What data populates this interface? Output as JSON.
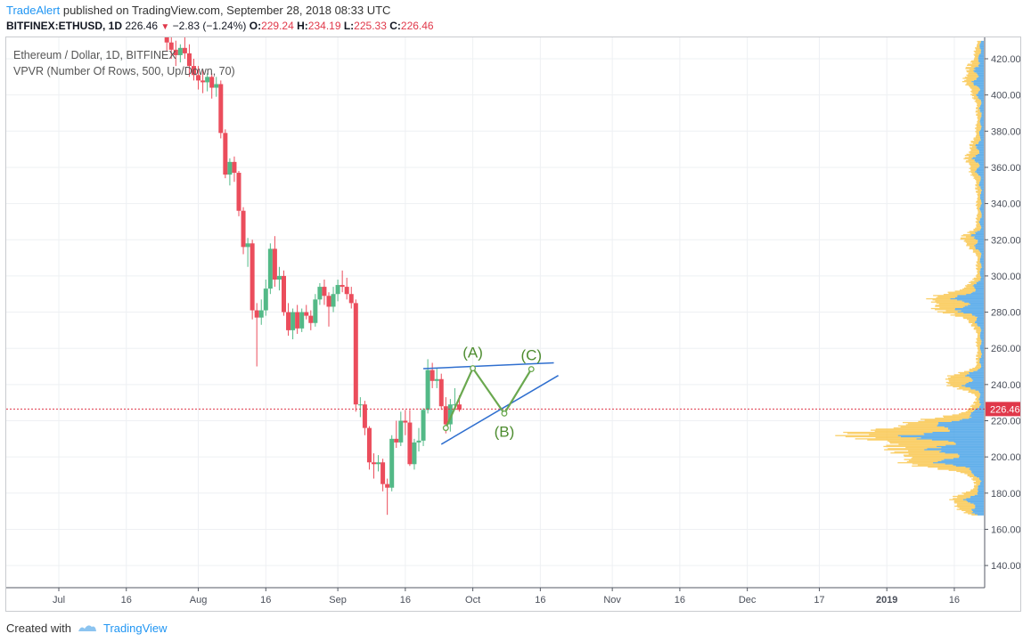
{
  "header": {
    "author": "TradeAlert",
    "published_text": "published on TradingView.com, September 28, 2018 08:33 UTC"
  },
  "symbol_bar": {
    "symbol": "BITFINEX:ETHUSD, 1D",
    "last": "226.46",
    "change": "−2.83 (−1.24%)",
    "o_label": "O:",
    "o_value": "229.24",
    "h_label": "H:",
    "h_value": "234.19",
    "l_label": "L:",
    "l_value": "225.33",
    "c_label": "C:",
    "c_value": "226.46"
  },
  "legend": {
    "title": "Ethereum / Dollar, 1D, BITFINEX",
    "indicator": "VPVR (Number Of Rows, 500, Up/Down, 70)"
  },
  "footer": {
    "created_with": "Created with",
    "tradingview": "TradingView"
  },
  "colors": {
    "up": "#53b987",
    "down": "#eb4d5c",
    "vp_up": "#4aa3e8",
    "vp_down": "#f9c74f",
    "trendline": "#2f6fcf",
    "wave": "#6aa84f",
    "price_line": "#e0384a"
  },
  "chart_data": {
    "type": "candlestick",
    "title": "Ethereum / Dollar, 1D, BITFINEX",
    "symbol": "BITFINEX:ETHUSD",
    "timeframe": "1D",
    "ylim": [
      130,
      430
    ],
    "y_ticks": [
      "140.00",
      "160.00",
      "180.00",
      "200.00",
      "220.00",
      "240.00",
      "260.00",
      "280.00",
      "300.00",
      "320.00",
      "340.00",
      "360.00",
      "380.00",
      "400.00",
      "420.00"
    ],
    "x_ticks": [
      "Jul",
      "16",
      "Aug",
      "16",
      "Sep",
      "16",
      "Oct",
      "16",
      "Nov",
      "16",
      "Dec",
      "17",
      "2019",
      "16"
    ],
    "last_price": "226.46",
    "candles": [
      {
        "date": "2018-07-25",
        "o": 433,
        "h": 440,
        "l": 424,
        "c": 429
      },
      {
        "date": "2018-07-26",
        "o": 429,
        "h": 433,
        "l": 420,
        "c": 425
      },
      {
        "date": "2018-07-27",
        "o": 425,
        "h": 430,
        "l": 416,
        "c": 422
      },
      {
        "date": "2018-07-28",
        "o": 422,
        "h": 428,
        "l": 418,
        "c": 426
      },
      {
        "date": "2018-07-29",
        "o": 426,
        "h": 432,
        "l": 420,
        "c": 423
      },
      {
        "date": "2018-07-30",
        "o": 423,
        "h": 428,
        "l": 410,
        "c": 416
      },
      {
        "date": "2018-07-31",
        "o": 416,
        "h": 420,
        "l": 408,
        "c": 411
      },
      {
        "date": "2018-08-01",
        "o": 411,
        "h": 416,
        "l": 403,
        "c": 408
      },
      {
        "date": "2018-08-02",
        "o": 408,
        "h": 414,
        "l": 401,
        "c": 407
      },
      {
        "date": "2018-08-03",
        "o": 407,
        "h": 412,
        "l": 402,
        "c": 410
      },
      {
        "date": "2018-08-04",
        "o": 410,
        "h": 412,
        "l": 398,
        "c": 404
      },
      {
        "date": "2018-08-05",
        "o": 404,
        "h": 410,
        "l": 399,
        "c": 406
      },
      {
        "date": "2018-08-06",
        "o": 406,
        "h": 408,
        "l": 376,
        "c": 379
      },
      {
        "date": "2018-08-07",
        "o": 379,
        "h": 381,
        "l": 354,
        "c": 356
      },
      {
        "date": "2018-08-08",
        "o": 356,
        "h": 365,
        "l": 350,
        "c": 363
      },
      {
        "date": "2018-08-09",
        "o": 363,
        "h": 366,
        "l": 352,
        "c": 357
      },
      {
        "date": "2018-08-10",
        "o": 357,
        "h": 358,
        "l": 333,
        "c": 336
      },
      {
        "date": "2018-08-11",
        "o": 336,
        "h": 338,
        "l": 312,
        "c": 316
      },
      {
        "date": "2018-08-12",
        "o": 316,
        "h": 321,
        "l": 305,
        "c": 318
      },
      {
        "date": "2018-08-13",
        "o": 318,
        "h": 320,
        "l": 276,
        "c": 281
      },
      {
        "date": "2018-08-14",
        "o": 281,
        "h": 285,
        "l": 250,
        "c": 277
      },
      {
        "date": "2018-08-15",
        "o": 277,
        "h": 287,
        "l": 273,
        "c": 281
      },
      {
        "date": "2018-08-16",
        "o": 281,
        "h": 298,
        "l": 278,
        "c": 293
      },
      {
        "date": "2018-08-17",
        "o": 293,
        "h": 318,
        "l": 290,
        "c": 315
      },
      {
        "date": "2018-08-18",
        "o": 315,
        "h": 322,
        "l": 294,
        "c": 298
      },
      {
        "date": "2018-08-19",
        "o": 298,
        "h": 305,
        "l": 292,
        "c": 300
      },
      {
        "date": "2018-08-20",
        "o": 300,
        "h": 303,
        "l": 278,
        "c": 280
      },
      {
        "date": "2018-08-21",
        "o": 280,
        "h": 285,
        "l": 267,
        "c": 270
      },
      {
        "date": "2018-08-22",
        "o": 270,
        "h": 282,
        "l": 265,
        "c": 280
      },
      {
        "date": "2018-08-23",
        "o": 280,
        "h": 284,
        "l": 268,
        "c": 271
      },
      {
        "date": "2018-08-24",
        "o": 271,
        "h": 282,
        "l": 269,
        "c": 280
      },
      {
        "date": "2018-08-25",
        "o": 280,
        "h": 284,
        "l": 276,
        "c": 278
      },
      {
        "date": "2018-08-26",
        "o": 278,
        "h": 281,
        "l": 270,
        "c": 274
      },
      {
        "date": "2018-08-27",
        "o": 274,
        "h": 290,
        "l": 272,
        "c": 287
      },
      {
        "date": "2018-08-28",
        "o": 287,
        "h": 296,
        "l": 284,
        "c": 294
      },
      {
        "date": "2018-08-29",
        "o": 294,
        "h": 298,
        "l": 284,
        "c": 289
      },
      {
        "date": "2018-08-30",
        "o": 289,
        "h": 291,
        "l": 272,
        "c": 283
      },
      {
        "date": "2018-08-31",
        "o": 283,
        "h": 294,
        "l": 280,
        "c": 290
      },
      {
        "date": "2018-09-01",
        "o": 290,
        "h": 298,
        "l": 286,
        "c": 295
      },
      {
        "date": "2018-09-02",
        "o": 295,
        "h": 303,
        "l": 291,
        "c": 294
      },
      {
        "date": "2018-09-03",
        "o": 294,
        "h": 299,
        "l": 287,
        "c": 290
      },
      {
        "date": "2018-09-04",
        "o": 290,
        "h": 294,
        "l": 282,
        "c": 285
      },
      {
        "date": "2018-09-05",
        "o": 285,
        "h": 287,
        "l": 225,
        "c": 229
      },
      {
        "date": "2018-09-06",
        "o": 229,
        "h": 233,
        "l": 222,
        "c": 229
      },
      {
        "date": "2018-09-07",
        "o": 229,
        "h": 231,
        "l": 212,
        "c": 216
      },
      {
        "date": "2018-09-08",
        "o": 216,
        "h": 217,
        "l": 193,
        "c": 197
      },
      {
        "date": "2018-09-09",
        "o": 197,
        "h": 202,
        "l": 188,
        "c": 196
      },
      {
        "date": "2018-09-10",
        "o": 196,
        "h": 201,
        "l": 192,
        "c": 197
      },
      {
        "date": "2018-09-11",
        "o": 197,
        "h": 199,
        "l": 181,
        "c": 185
      },
      {
        "date": "2018-09-12",
        "o": 185,
        "h": 188,
        "l": 168,
        "c": 183
      },
      {
        "date": "2018-09-13",
        "o": 183,
        "h": 212,
        "l": 181,
        "c": 210
      },
      {
        "date": "2018-09-14",
        "o": 210,
        "h": 220,
        "l": 205,
        "c": 208
      },
      {
        "date": "2018-09-15",
        "o": 208,
        "h": 225,
        "l": 206,
        "c": 220
      },
      {
        "date": "2018-09-16",
        "o": 220,
        "h": 226,
        "l": 212,
        "c": 219
      },
      {
        "date": "2018-09-17",
        "o": 219,
        "h": 226,
        "l": 195,
        "c": 196
      },
      {
        "date": "2018-09-18",
        "o": 196,
        "h": 210,
        "l": 193,
        "c": 208
      },
      {
        "date": "2018-09-19",
        "o": 208,
        "h": 216,
        "l": 203,
        "c": 209
      },
      {
        "date": "2018-09-20",
        "o": 209,
        "h": 227,
        "l": 206,
        "c": 226
      },
      {
        "date": "2018-09-21",
        "o": 226,
        "h": 254,
        "l": 224,
        "c": 248
      },
      {
        "date": "2018-09-22",
        "o": 248,
        "h": 252,
        "l": 238,
        "c": 242
      },
      {
        "date": "2018-09-23",
        "o": 242,
        "h": 249,
        "l": 238,
        "c": 243
      },
      {
        "date": "2018-09-24",
        "o": 243,
        "h": 246,
        "l": 226,
        "c": 228
      },
      {
        "date": "2018-09-25",
        "o": 228,
        "h": 233,
        "l": 213,
        "c": 218
      },
      {
        "date": "2018-09-26",
        "o": 218,
        "h": 232,
        "l": 214,
        "c": 229
      },
      {
        "date": "2018-09-27",
        "o": 229,
        "h": 238,
        "l": 226,
        "c": 229
      },
      {
        "date": "2018-09-28",
        "o": 229,
        "h": 234,
        "l": 225,
        "c": 226
      }
    ],
    "annotations": [
      {
        "label": "(A)",
        "date": "2018-10-01",
        "price": 249
      },
      {
        "label": "(B)",
        "date": "2018-10-08",
        "price": 224
      },
      {
        "label": "(C)",
        "date": "2018-10-14",
        "price": 248.5
      }
    ],
    "wave_path": [
      {
        "date": "2018-09-25",
        "price": 216
      },
      {
        "date": "2018-10-01",
        "price": 249
      },
      {
        "date": "2018-10-08",
        "price": 224
      },
      {
        "date": "2018-10-14",
        "price": 248.5
      }
    ],
    "trendlines": [
      {
        "from": {
          "date": "2018-09-20",
          "price": 248.8
        },
        "to": {
          "date": "2018-10-19",
          "price": 252
        }
      },
      {
        "from": {
          "date": "2018-09-24",
          "price": 207
        },
        "to": {
          "date": "2018-10-20",
          "price": 245
        }
      }
    ]
  }
}
